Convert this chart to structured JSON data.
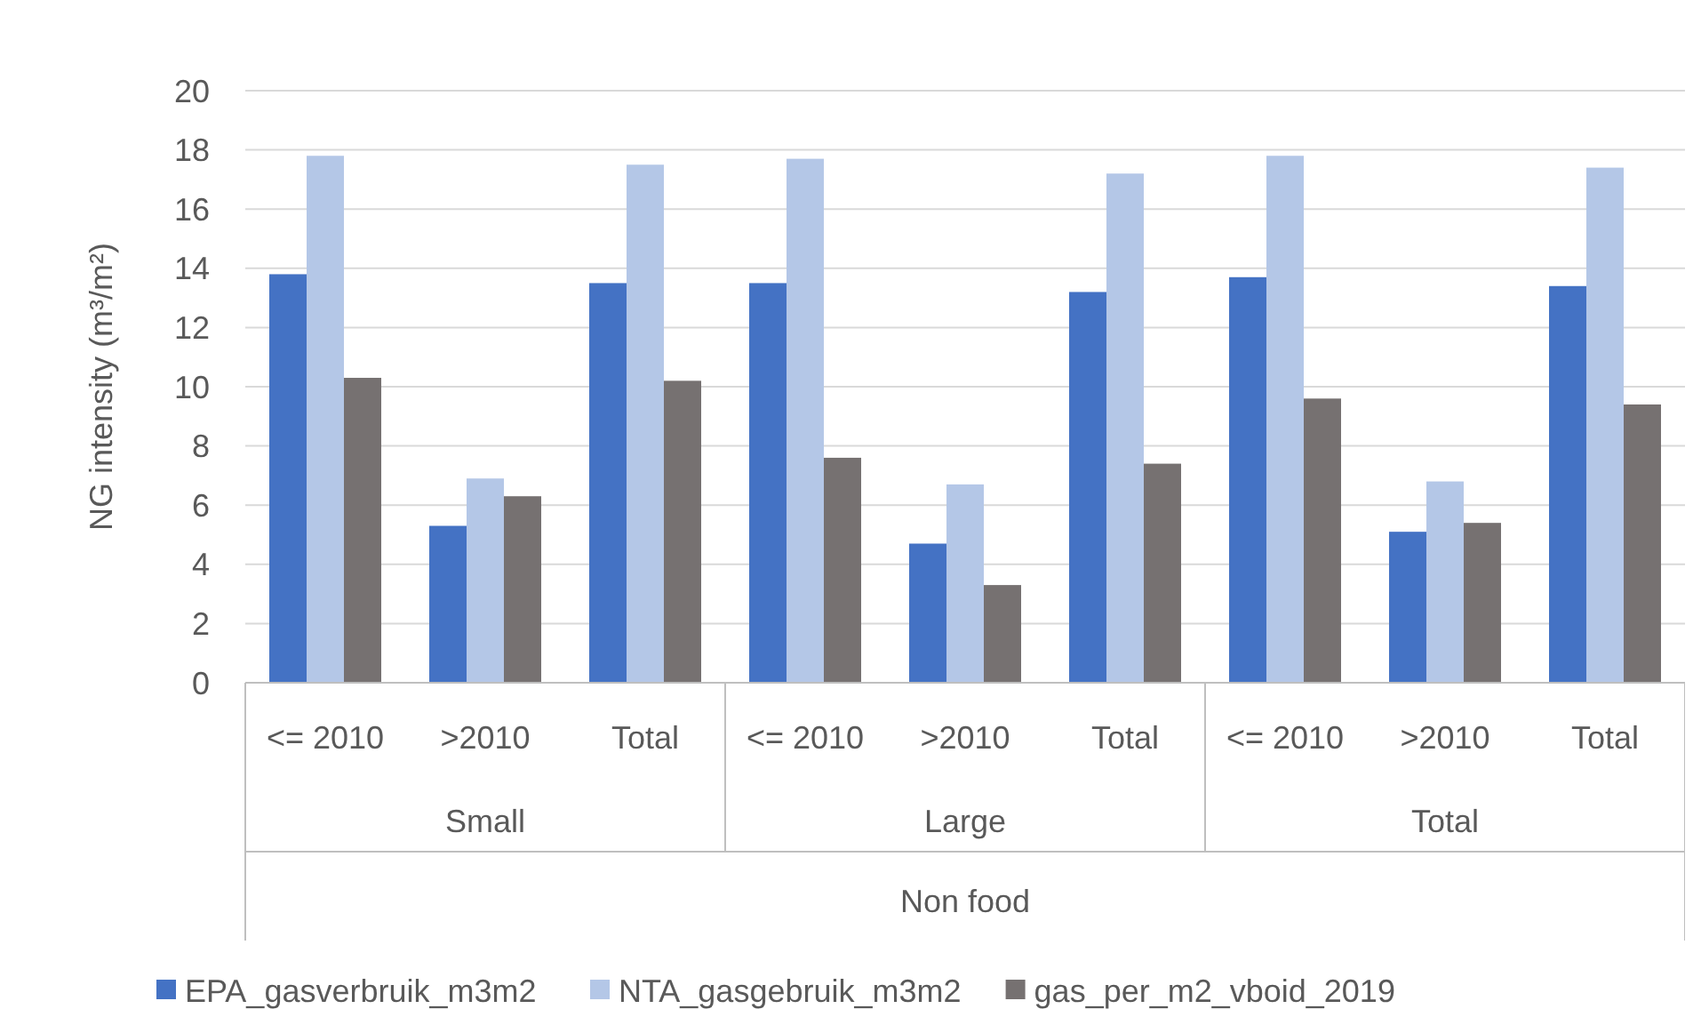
{
  "chart_data": {
    "type": "bar",
    "ylabel": "NG intensity (m³/m²)",
    "categories": [
      "<= 2010",
      ">2010",
      "Total",
      "<= 2010",
      ">2010",
      "Total",
      "<= 2010",
      ">2010",
      "Total"
    ],
    "series": [
      {
        "name": "EPA_gasverbruik_m3m2",
        "color": "#4472c4",
        "values": [
          13.8,
          5.3,
          13.5,
          13.5,
          4.7,
          13.2,
          13.7,
          5.1,
          13.4
        ]
      },
      {
        "name": "NTA_gasgebruik_m3m2",
        "color": "#b4c7e7",
        "values": [
          17.8,
          6.9,
          17.5,
          17.7,
          6.7,
          17.2,
          17.8,
          6.8,
          17.4
        ]
      },
      {
        "name": "gas_per_m2_vboid_2019",
        "color": "#767171",
        "values": [
          10.3,
          6.3,
          10.2,
          7.6,
          3.3,
          7.4,
          9.6,
          5.4,
          9.4
        ]
      }
    ],
    "annotations": [
      "Small",
      "Large",
      "Total",
      "Non food"
    ],
    "ylim": [
      0,
      20
    ],
    "yticks": [
      0,
      2,
      4,
      6,
      8,
      10,
      12,
      14,
      16,
      18,
      20
    ],
    "grid": "y",
    "legend": "bottom"
  }
}
